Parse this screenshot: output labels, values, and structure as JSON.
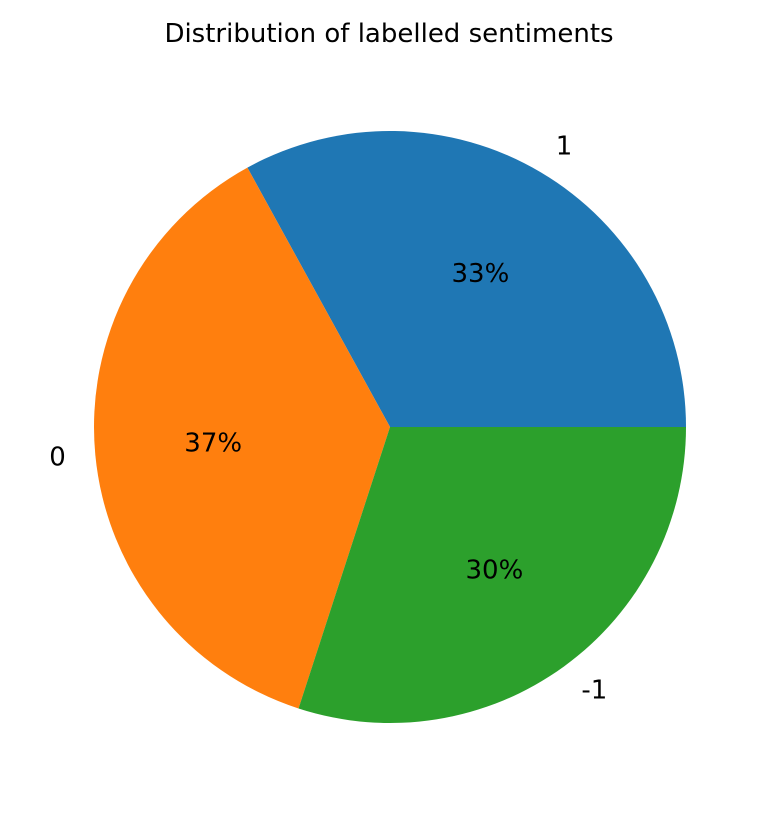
{
  "chart_data": {
    "type": "pie",
    "title": "Distribution of labelled sentiments",
    "labels": [
      "1",
      "0",
      "-1"
    ],
    "values": [
      33,
      37,
      30
    ],
    "percent_labels": [
      "33%",
      "37%",
      "30%"
    ],
    "colors": [
      "#1f77b4",
      "#ff7f0e",
      "#2ca02c"
    ],
    "start_angle_deg": 0,
    "direction": "counterclockwise"
  }
}
